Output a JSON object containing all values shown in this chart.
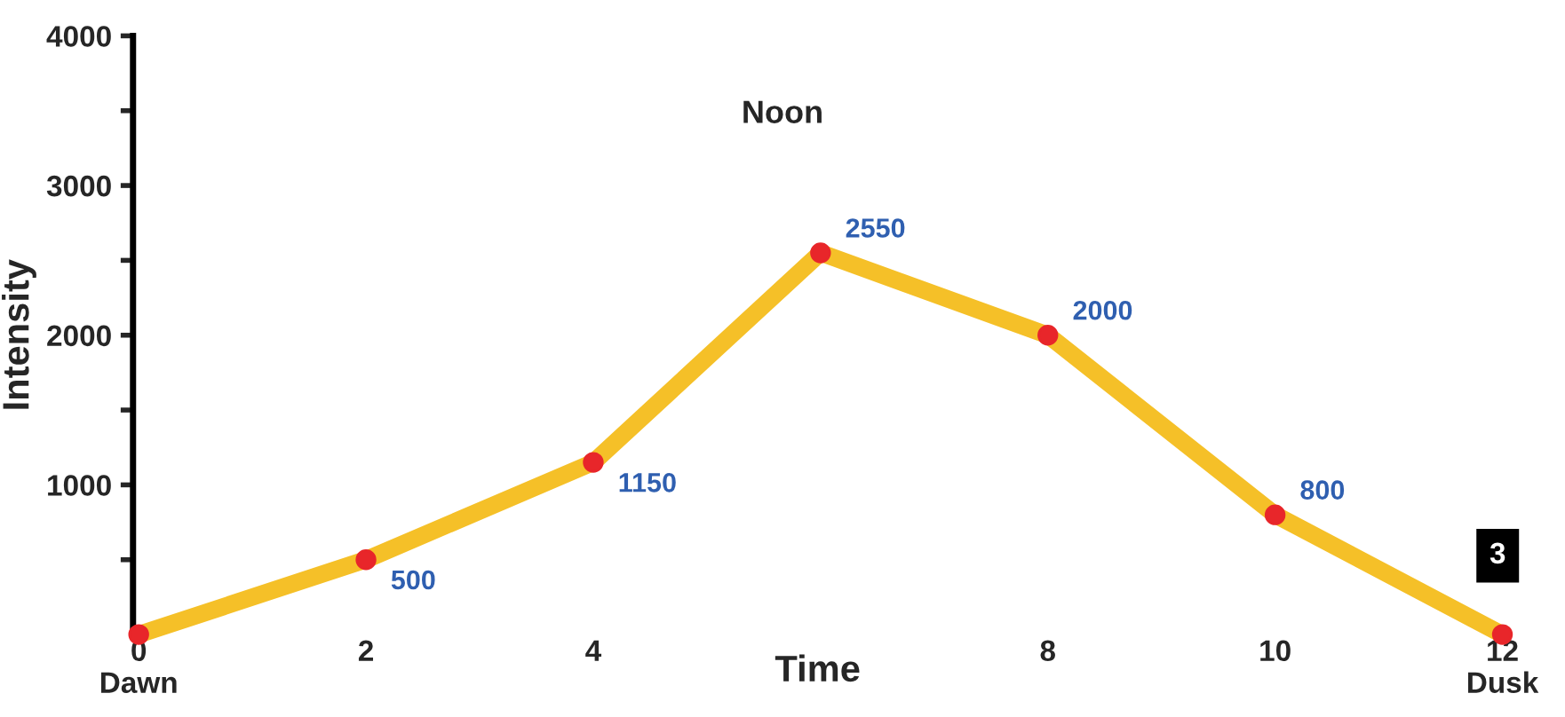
{
  "chart_data": {
    "type": "line",
    "xlabel": "Time",
    "ylabel": "Intensity",
    "x": [
      0,
      2,
      4,
      6,
      8,
      10,
      12
    ],
    "xlim": [
      -0.05,
      12
    ],
    "xticks": [
      {
        "value": 0,
        "label": "0\nDawn"
      },
      2,
      4,
      8,
      10,
      {
        "value": 12,
        "label": "12\nDusk"
      }
    ],
    "ylim": [
      0,
      4000
    ],
    "yticks": [
      {
        "value": 500,
        "label": null
      },
      1000,
      {
        "value": 1500,
        "label": null
      },
      2000,
      {
        "value": 2500,
        "label": null
      },
      3000,
      {
        "value": 3500,
        "label": null
      },
      4000
    ],
    "series": [
      {
        "color": "#f5c028",
        "values": [
          0,
          500,
          1150,
          2550,
          2000,
          800,
          0
        ]
      },
      {
        "type": "scatter",
        "color": "#e8262a",
        "marker": "circle",
        "values": [
          0,
          500,
          1150,
          2550,
          2000,
          800,
          0
        ],
        "value_labels": [
          null,
          "500",
          "1150",
          "2550",
          "2000",
          "800",
          null
        ]
      }
    ],
    "annotations": [
      "Noon",
      "3"
    ],
    "grid": false,
    "legend": false
  }
}
